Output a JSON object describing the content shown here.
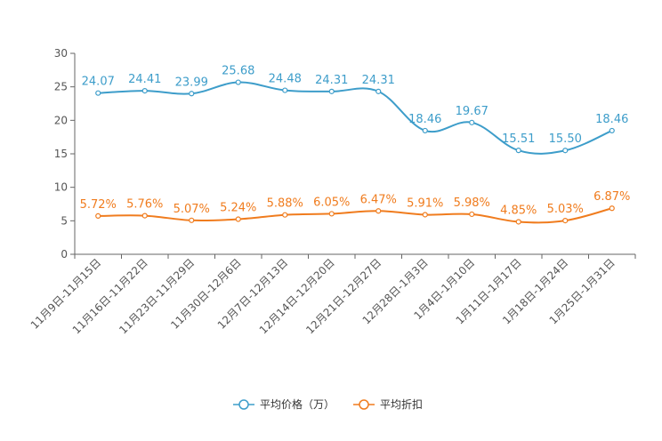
{
  "chart_data": {
    "type": "line",
    "title": "",
    "xlabel": "",
    "ylabel": "",
    "ylim": [
      0,
      30
    ],
    "yticks": [
      0,
      5,
      10,
      15,
      20,
      25,
      30
    ],
    "grid": false,
    "legend": "bottom-center",
    "categories": [
      "11月9日-11月15日",
      "11月16日-11月22日",
      "11月23日-11月29日",
      "11月30日-12月6日",
      "12月7日-12月13日",
      "12月14日-12月20日",
      "12月21日-12月27日",
      "12月28日-1月3日",
      "1月4日-1月10日",
      "1月11日-1月17日",
      "1月18日-1月24日",
      "1月25日-1月31日"
    ],
    "series": [
      {
        "name": "平均价格（万）",
        "color": "#3d9dca",
        "values": [
          24.07,
          24.41,
          23.99,
          25.68,
          24.48,
          24.31,
          24.31,
          18.46,
          19.67,
          15.51,
          15.5,
          18.46
        ],
        "labels": [
          "24.07",
          "24.41",
          "23.99",
          "25.68",
          "24.48",
          "24.31",
          "24.31",
          "18.46",
          "19.67",
          "15.51",
          "15.50",
          "18.46"
        ]
      },
      {
        "name": "平均折扣",
        "color": "#f07c1e",
        "values": [
          5.72,
          5.76,
          5.07,
          5.24,
          5.88,
          6.05,
          6.47,
          5.91,
          5.98,
          4.85,
          5.03,
          6.87
        ],
        "labels": [
          "5.72%",
          "5.76%",
          "5.07%",
          "5.24%",
          "5.88%",
          "6.05%",
          "6.47%",
          "5.91%",
          "5.98%",
          "4.85%",
          "5.03%",
          "6.87%"
        ]
      }
    ]
  }
}
